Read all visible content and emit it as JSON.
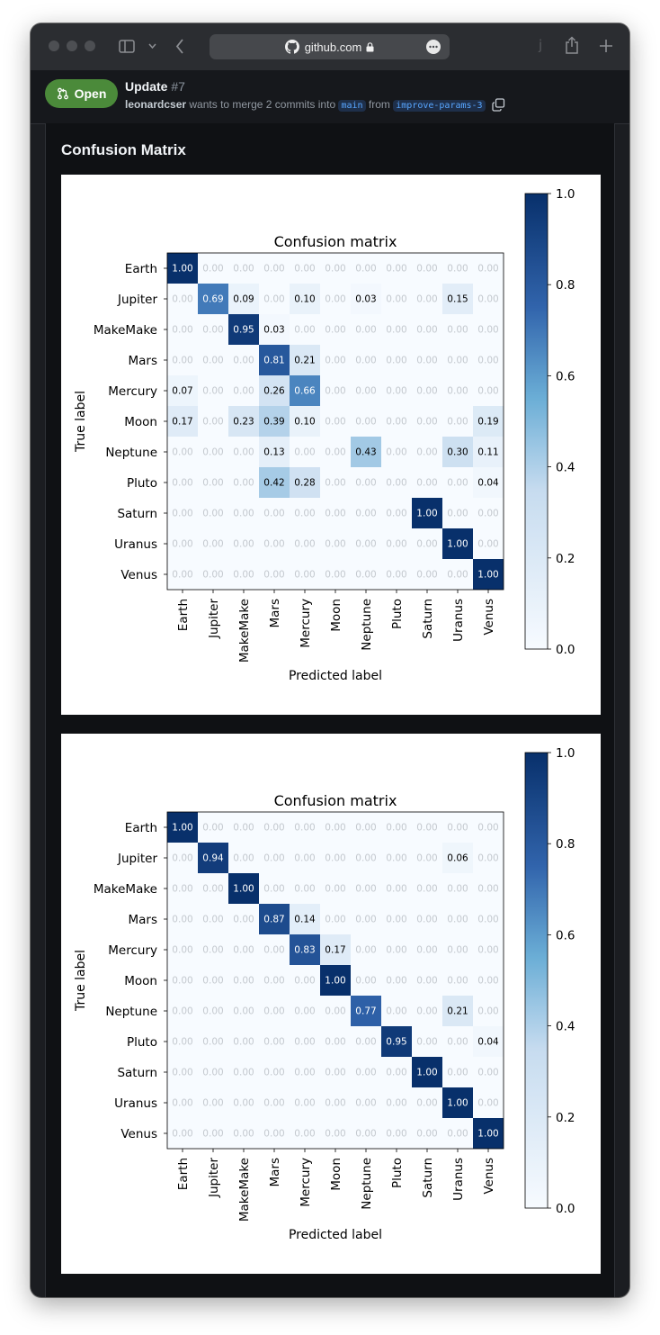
{
  "browser": {
    "url": "github.com",
    "icons": [
      "sidebar-icon",
      "chevron-down-icon",
      "back-icon",
      "github-icon",
      "lock-icon",
      "more-icon",
      "share-icon",
      "plus-icon"
    ],
    "trailing_letter": "j"
  },
  "pr": {
    "status": "Open",
    "title": "Update",
    "number": "#7",
    "author": "leonardcser",
    "merge_text": "wants to merge 2 commits into",
    "base_branch": "main",
    "from_text": "from",
    "head_branch": "improve-params-3",
    "status_color": "#4b8a3a"
  },
  "section": {
    "title": "Confusion Matrix"
  },
  "colormap": {
    "low": "#f7fbff",
    "high": "#08306b",
    "name": "Blues"
  },
  "chart_data": [
    {
      "type": "heatmap",
      "title": "Confusion matrix",
      "xlabel": "Predicted label",
      "ylabel": "True label",
      "labels": [
        "Earth",
        "Jupiter",
        "MakeMake",
        "Mars",
        "Mercury",
        "Moon",
        "Neptune",
        "Pluto",
        "Saturn",
        "Uranus",
        "Venus"
      ],
      "colorbar_ticks": [
        "0.0",
        "0.2",
        "0.4",
        "0.6",
        "0.8",
        "1.0"
      ],
      "clim": [
        0,
        1
      ],
      "values": [
        [
          1.0,
          0.0,
          0.0,
          0.0,
          0.0,
          0.0,
          0.0,
          0.0,
          0.0,
          0.0,
          0.0
        ],
        [
          0.0,
          0.69,
          0.09,
          0.0,
          0.1,
          0.0,
          0.03,
          0.0,
          0.0,
          0.15,
          0.0
        ],
        [
          0.0,
          0.0,
          0.95,
          0.03,
          0.0,
          0.0,
          0.0,
          0.0,
          0.0,
          0.0,
          0.0
        ],
        [
          0.0,
          0.0,
          0.0,
          0.81,
          0.21,
          0.0,
          0.0,
          0.0,
          0.0,
          0.0,
          0.0
        ],
        [
          0.07,
          0.0,
          0.0,
          0.26,
          0.66,
          0.0,
          0.0,
          0.0,
          0.0,
          0.0,
          0.0
        ],
        [
          0.17,
          0.0,
          0.23,
          0.39,
          0.1,
          0.0,
          0.0,
          0.0,
          0.0,
          0.0,
          0.19
        ],
        [
          0.0,
          0.0,
          0.0,
          0.13,
          0.0,
          0.0,
          0.43,
          0.0,
          0.0,
          0.3,
          0.11
        ],
        [
          0.0,
          0.0,
          0.0,
          0.42,
          0.28,
          0.0,
          0.0,
          0.0,
          0.0,
          0.0,
          0.04
        ],
        [
          0.0,
          0.0,
          0.0,
          0.0,
          0.0,
          0.0,
          0.0,
          0.0,
          1.0,
          0.0,
          0.0
        ],
        [
          0.0,
          0.0,
          0.0,
          0.0,
          0.0,
          0.0,
          0.0,
          0.0,
          0.0,
          1.0,
          0.0
        ],
        [
          0.0,
          0.0,
          0.0,
          0.0,
          0.0,
          0.0,
          0.0,
          0.0,
          0.0,
          0.0,
          1.0
        ]
      ]
    },
    {
      "type": "heatmap",
      "title": "Confusion matrix",
      "xlabel": "Predicted label",
      "ylabel": "True label",
      "labels": [
        "Earth",
        "Jupiter",
        "MakeMake",
        "Mars",
        "Mercury",
        "Moon",
        "Neptune",
        "Pluto",
        "Saturn",
        "Uranus",
        "Venus"
      ],
      "colorbar_ticks": [
        "0.0",
        "0.2",
        "0.4",
        "0.6",
        "0.8",
        "1.0"
      ],
      "clim": [
        0,
        1
      ],
      "values": [
        [
          1.0,
          0.0,
          0.0,
          0.0,
          0.0,
          0.0,
          0.0,
          0.0,
          0.0,
          0.0,
          0.0
        ],
        [
          0.0,
          0.94,
          0.0,
          0.0,
          0.0,
          0.0,
          0.0,
          0.0,
          0.0,
          0.06,
          0.0
        ],
        [
          0.0,
          0.0,
          1.0,
          0.0,
          0.0,
          0.0,
          0.0,
          0.0,
          0.0,
          0.0,
          0.0
        ],
        [
          0.0,
          0.0,
          0.0,
          0.87,
          0.14,
          0.0,
          0.0,
          0.0,
          0.0,
          0.0,
          0.0
        ],
        [
          0.0,
          0.0,
          0.0,
          0.0,
          0.83,
          0.17,
          0.0,
          0.0,
          0.0,
          0.0,
          0.0
        ],
        [
          0.0,
          0.0,
          0.0,
          0.0,
          0.0,
          1.0,
          0.0,
          0.0,
          0.0,
          0.0,
          0.0
        ],
        [
          0.0,
          0.0,
          0.0,
          0.0,
          0.0,
          0.0,
          0.77,
          0.0,
          0.0,
          0.21,
          0.0
        ],
        [
          0.0,
          0.0,
          0.0,
          0.0,
          0.0,
          0.0,
          0.0,
          0.95,
          0.0,
          0.0,
          0.04
        ],
        [
          0.0,
          0.0,
          0.0,
          0.0,
          0.0,
          0.0,
          0.0,
          0.0,
          1.0,
          0.0,
          0.0
        ],
        [
          0.0,
          0.0,
          0.0,
          0.0,
          0.0,
          0.0,
          0.0,
          0.0,
          0.0,
          1.0,
          0.0
        ],
        [
          0.0,
          0.0,
          0.0,
          0.0,
          0.0,
          0.0,
          0.0,
          0.0,
          0.0,
          0.0,
          1.0
        ]
      ]
    }
  ]
}
